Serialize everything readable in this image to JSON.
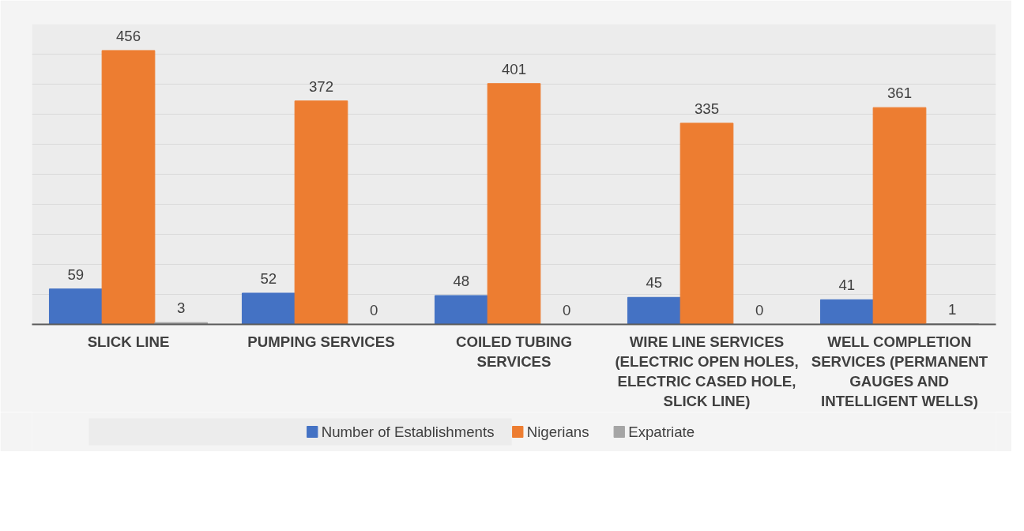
{
  "chart_data": {
    "type": "bar",
    "categories": [
      "SLICK LINE",
      "PUMPING SERVICES",
      "COILED TUBING SERVICES",
      "WIRE LINE SERVICES (ELECTRIC OPEN HOLES, ELECTRIC CASED HOLE, SLICK LINE)",
      "WELL COMPLETION SERVICES (PERMANENT GAUGES AND INTELLIGENT WELLS)"
    ],
    "series": [
      {
        "name": "Number of Establishments",
        "color": "#4472c4",
        "values": [
          59,
          52,
          48,
          45,
          41
        ]
      },
      {
        "name": "Nigerians",
        "color": "#ed7d31",
        "values": [
          456,
          372,
          401,
          335,
          361
        ]
      },
      {
        "name": "Expatriate",
        "color": "#a5a5a5",
        "values": [
          3,
          0,
          0,
          0,
          1
        ]
      }
    ],
    "ylim": [
      0,
      500
    ],
    "yticks": [
      {
        "value": 0,
        "label": null
      },
      {
        "value": 50,
        "label": null
      },
      {
        "value": 100,
        "label": null
      },
      {
        "value": 150,
        "label": null
      },
      {
        "value": 200,
        "label": null
      },
      {
        "value": 250,
        "label": null
      },
      {
        "value": 300,
        "label": null
      },
      {
        "value": 350,
        "label": null
      },
      {
        "value": 400,
        "label": null
      },
      {
        "value": 450,
        "label": null
      },
      {
        "value": 500,
        "label": null
      }
    ],
    "tick_labels": "x",
    "grid": "y",
    "legend": "bottom",
    "data_labels": true
  }
}
